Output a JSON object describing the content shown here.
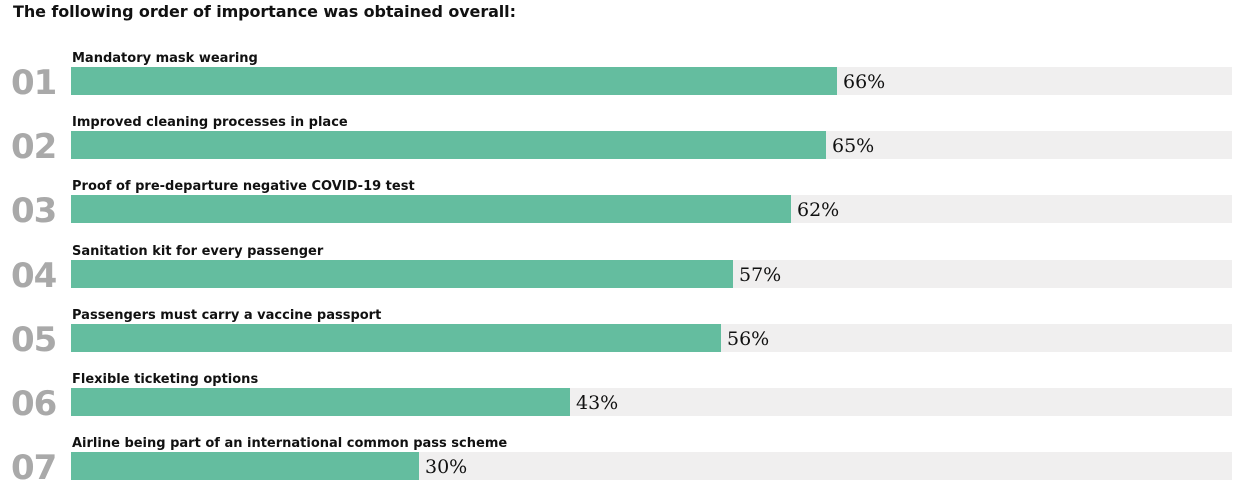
{
  "title": "The following order of importance was obtained overall:",
  "chart_data": {
    "type": "bar",
    "orientation": "horizontal",
    "title": "",
    "xlim": [
      0,
      100
    ],
    "colors": {
      "bar": "#64bd9f",
      "track": "#f0efef",
      "rank": "#a9a9a9",
      "text": "#111111"
    },
    "ranks": [
      "01",
      "02",
      "03",
      "04",
      "05",
      "06",
      "07"
    ],
    "categories": [
      "Mandatory mask wearing",
      "Improved cleaning processes in place",
      "Proof of pre-departure negative COVID-19 test",
      "Sanitation kit for every passenger",
      "Passengers must carry a vaccine passport",
      "Flexible ticketing options",
      "Airline being part of an international common pass scheme"
    ],
    "values": [
      66,
      65,
      62,
      57,
      56,
      43,
      30
    ],
    "value_labels": [
      "66%",
      "65%",
      "62%",
      "57%",
      "56%",
      "43%",
      "30%"
    ]
  }
}
